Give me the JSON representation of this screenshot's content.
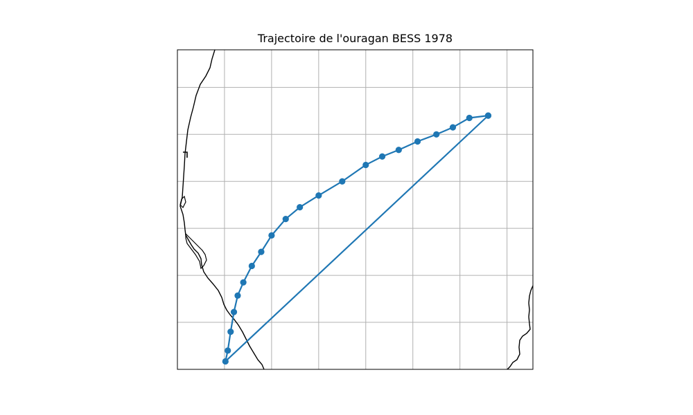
{
  "title": "Trajectoire de l'ouragan BESS 1978",
  "chart_data": {
    "type": "map-track",
    "title": "Trajectoire de l'ouragan BESS 1978",
    "xlabel": "",
    "ylabel": "",
    "grid": true,
    "track_color": "#1f77b4",
    "coastline_color": "#000000",
    "grid_color": "#b0b0b0",
    "points": [
      {
        "x": 6.6,
        "y": 5.4
      },
      {
        "x": 6.2,
        "y": 5.35
      },
      {
        "x": 5.85,
        "y": 5.15
      },
      {
        "x": 5.5,
        "y": 5.0
      },
      {
        "x": 5.1,
        "y": 4.85
      },
      {
        "x": 4.7,
        "y": 4.67
      },
      {
        "x": 4.35,
        "y": 4.53
      },
      {
        "x": 4.0,
        "y": 4.35
      },
      {
        "x": 3.5,
        "y": 4.0
      },
      {
        "x": 3.0,
        "y": 3.7
      },
      {
        "x": 2.6,
        "y": 3.45
      },
      {
        "x": 2.3,
        "y": 3.2
      },
      {
        "x": 2.0,
        "y": 2.85
      },
      {
        "x": 1.78,
        "y": 2.5
      },
      {
        "x": 1.58,
        "y": 2.2
      },
      {
        "x": 1.4,
        "y": 1.85
      },
      {
        "x": 1.28,
        "y": 1.57
      },
      {
        "x": 1.2,
        "y": 1.22
      },
      {
        "x": 1.13,
        "y": 0.8
      },
      {
        "x": 1.07,
        "y": 0.4
      },
      {
        "x": 1.02,
        "y": 0.17
      },
      {
        "x": 6.6,
        "y": 5.4
      }
    ]
  }
}
